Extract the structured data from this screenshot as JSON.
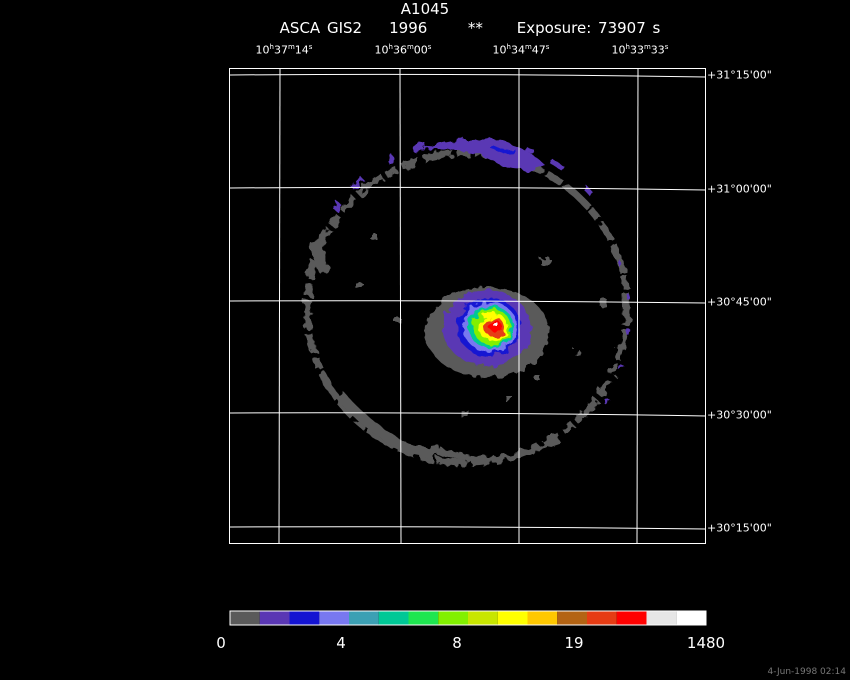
{
  "header": {
    "title": "A1045",
    "subtitle": "ASCA GIS2    1996      **     Exposure: 73907 s"
  },
  "ra_labels": [
    {
      "h": "10",
      "m": "37",
      "s": "14"
    },
    {
      "h": "10",
      "m": "36",
      "s": "00"
    },
    {
      "h": "10",
      "m": "34",
      "s": "47"
    },
    {
      "h": "10",
      "m": "33",
      "s": "33"
    }
  ],
  "dec_labels": [
    "+31°15'00\"",
    "+31°00'00\"",
    "+30°45'00\"",
    "+30°30'00\"",
    "+30°15'00\""
  ],
  "colorbar": {
    "colors": [
      "#5a5a5a",
      "#5a37b4",
      "#1414d2",
      "#7878f0",
      "#3ca0b4",
      "#00c896",
      "#1ee650",
      "#82f000",
      "#c8e600",
      "#ffff00",
      "#ffc800",
      "#b46414",
      "#e63c14",
      "#ff0000",
      "#e6e6e6",
      "#ffffff"
    ],
    "tick_labels": [
      "0",
      "4",
      "8",
      "19",
      "1480"
    ]
  },
  "footer": {
    "date": "4-Jun-1998 02:14"
  }
}
